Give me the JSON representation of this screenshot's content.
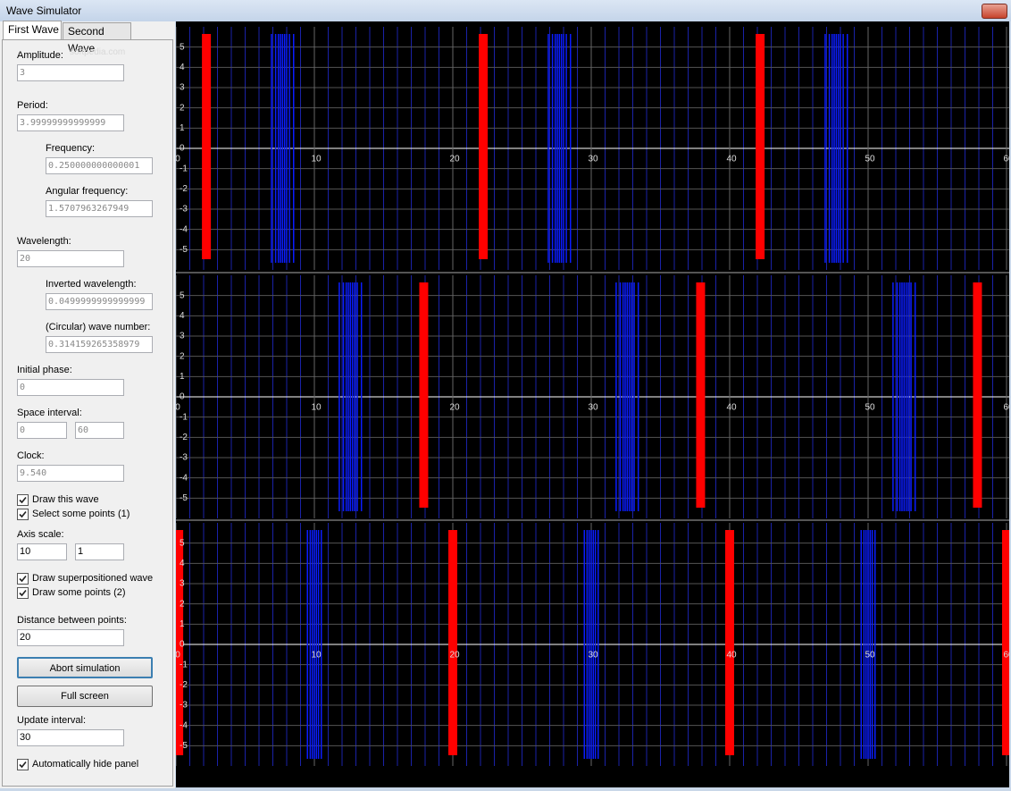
{
  "window": {
    "title": "Wave Simulator"
  },
  "tabs": [
    "First Wave",
    "Second Wave"
  ],
  "watermark": "softpedia.com",
  "form": {
    "amplitude": {
      "label": "Amplitude:",
      "value": "3"
    },
    "period": {
      "label": "Period:",
      "value": "3.99999999999999"
    },
    "frequency": {
      "label": "Frequency:",
      "value": "0.250000000000001"
    },
    "angular_frequency": {
      "label": "Angular frequency:",
      "value": "1.5707963267949"
    },
    "wavelength": {
      "label": "Wavelength:",
      "value": "20"
    },
    "inverted_wavelength": {
      "label": "Inverted wavelength:",
      "value": "0.0499999999999999"
    },
    "wave_number": {
      "label": "(Circular) wave number:",
      "value": "0.314159265358979"
    },
    "initial_phase": {
      "label": "Initial phase:",
      "value": "0"
    },
    "space_interval": {
      "label": "Space interval:",
      "values": [
        "0",
        "60"
      ]
    },
    "clock": {
      "label": "Clock:",
      "value": "9.540"
    },
    "draw_wave": {
      "label": "Draw this wave",
      "checked": true
    },
    "select_points": {
      "label": "Select some points (1)",
      "checked": true
    },
    "axis_scale": {
      "label": "Axis scale:",
      "values": [
        "10",
        "1"
      ]
    },
    "draw_superposition": {
      "label": "Draw superpositioned wave",
      "checked": true
    },
    "draw_points": {
      "label": "Draw some points (2)",
      "checked": true
    },
    "distance": {
      "label": "Distance between points:",
      "value": "20"
    },
    "abort_button": "Abort simulation",
    "fullscreen_button": "Full screen",
    "update_interval": {
      "label": "Update interval:",
      "value": "30"
    },
    "auto_hide": {
      "label": "Automatically hide panel",
      "checked": true
    }
  },
  "charts": [
    {
      "type": "wave",
      "xlim": [
        0,
        60
      ],
      "ylim": [
        -6,
        6
      ],
      "xticks": [
        0,
        10,
        20,
        30,
        40,
        50,
        60
      ],
      "yticks": [
        -5,
        -4,
        -3,
        -2,
        -1,
        0,
        1,
        2,
        3,
        4,
        5
      ],
      "minor_step": 1,
      "point_color": "#0a1cff",
      "selected_color": "#ff0000",
      "points_x": [
        6.9,
        7.2,
        7.4,
        7.55,
        7.7,
        7.85,
        8.0,
        8.2,
        8.5,
        26.9,
        27.2,
        27.4,
        27.55,
        27.7,
        27.85,
        28.0,
        28.2,
        28.5,
        46.9,
        47.2,
        47.4,
        47.55,
        47.7,
        47.85,
        48.0,
        48.2,
        48.5
      ],
      "selected_x": [
        2.2,
        22.2,
        42.2
      ]
    },
    {
      "type": "wave",
      "xlim": [
        0,
        60
      ],
      "ylim": [
        -6,
        6
      ],
      "xticks": [
        0,
        10,
        20,
        30,
        40,
        50,
        60
      ],
      "yticks": [
        -5,
        -4,
        -3,
        -2,
        -1,
        0,
        1,
        2,
        3,
        4,
        5
      ],
      "minor_step": 1,
      "point_color": "#0a1cff",
      "selected_color": "#ff0000",
      "points_x": [
        11.8,
        12.1,
        12.3,
        12.45,
        12.6,
        12.75,
        12.9,
        13.1,
        13.4,
        31.8,
        32.1,
        32.3,
        32.45,
        32.6,
        32.75,
        32.9,
        33.1,
        33.4,
        51.8,
        52.1,
        52.3,
        52.45,
        52.6,
        52.75,
        52.9,
        53.1,
        53.4
      ],
      "selected_x": [
        17.9,
        37.9,
        57.9
      ]
    },
    {
      "type": "wave",
      "xlim": [
        0,
        60
      ],
      "ylim": [
        -6,
        6
      ],
      "xticks": [
        0,
        10,
        20,
        30,
        40,
        50,
        60
      ],
      "yticks": [
        -5,
        -4,
        -3,
        -2,
        -1,
        0,
        1,
        2,
        3,
        4,
        5
      ],
      "minor_step": 1,
      "point_color": "#0a1cff",
      "selected_color": "#ff0000",
      "points_x": [
        9.5,
        9.7,
        9.85,
        10,
        10.15,
        10.3,
        10.5,
        29.5,
        29.7,
        29.85,
        30,
        30.15,
        30.3,
        30.5,
        49.5,
        49.7,
        49.85,
        50,
        50.15,
        50.3,
        50.5
      ],
      "selected_x": [
        0.2,
        20,
        40,
        60
      ]
    }
  ]
}
